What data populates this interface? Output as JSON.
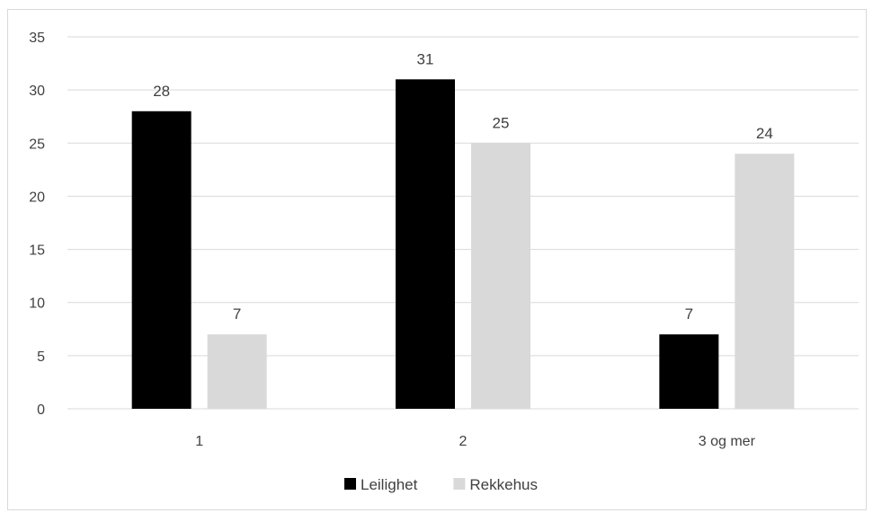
{
  "chart_data": {
    "type": "bar",
    "categories": [
      "1",
      "2",
      "3 og mer"
    ],
    "series": [
      {
        "name": "Leilighet",
        "values": [
          28,
          31,
          7
        ],
        "color": "#000000"
      },
      {
        "name": "Rekkehus",
        "values": [
          7,
          25,
          24
        ],
        "color": "#d9d9d9"
      }
    ],
    "ylim": [
      0,
      35
    ],
    "yticks": [
      0,
      5,
      10,
      15,
      20,
      25,
      30,
      35
    ],
    "grid": true,
    "legend": "bottom",
    "data_labels": true
  }
}
